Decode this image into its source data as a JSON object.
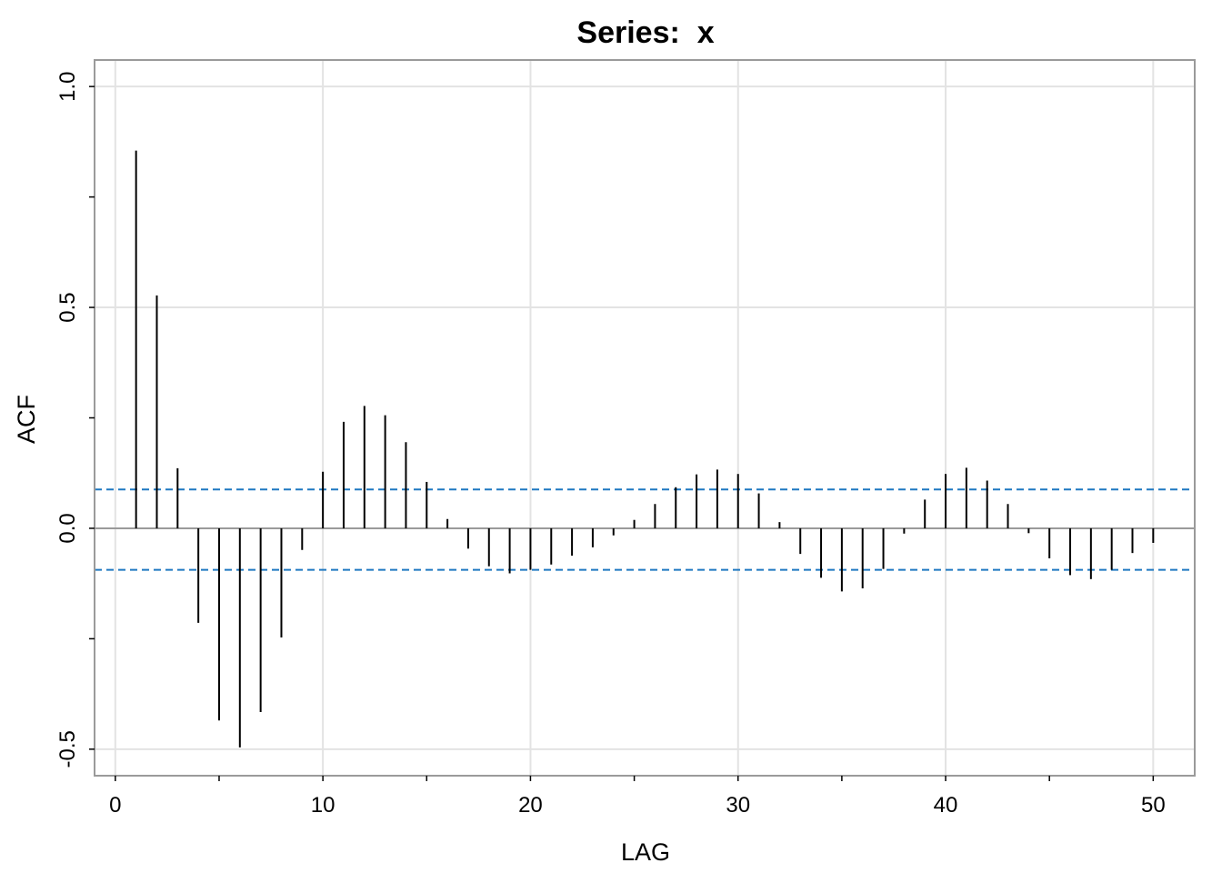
{
  "chart_data": {
    "type": "bar",
    "title": "Series:  x",
    "xlabel": "LAG",
    "ylabel": "ACF",
    "xlim": [
      -1,
      52
    ],
    "ylim": [
      -0.56,
      1.06
    ],
    "x_ticks": [
      0,
      10,
      20,
      30,
      40,
      50
    ],
    "y_ticks": [
      -0.5,
      0.0,
      0.5,
      1.0
    ],
    "x_tick_labels": [
      "0",
      "10",
      "20",
      "30",
      "40",
      "50"
    ],
    "y_tick_labels": [
      "-0.5",
      "0.0",
      "0.5",
      "1.0"
    ],
    "grid": true,
    "legend": "none",
    "confidence_bounds": [
      0.088,
      -0.094
    ],
    "confidence_color": "#1f78c1",
    "spike_color": "#000000",
    "lags": [
      1,
      2,
      3,
      4,
      5,
      6,
      7,
      8,
      9,
      10,
      11,
      12,
      13,
      14,
      15,
      16,
      17,
      18,
      19,
      20,
      21,
      22,
      23,
      24,
      25,
      26,
      27,
      28,
      29,
      30,
      31,
      32,
      33,
      34,
      35,
      36,
      37,
      38,
      39,
      40,
      41,
      42,
      43,
      44,
      45,
      46,
      47,
      48,
      49,
      50
    ],
    "values": [
      0.855,
      0.527,
      0.136,
      -0.214,
      -0.435,
      -0.496,
      -0.416,
      -0.247,
      -0.049,
      0.128,
      0.241,
      0.277,
      0.256,
      0.195,
      0.105,
      0.021,
      -0.046,
      -0.086,
      -0.102,
      -0.094,
      -0.082,
      -0.062,
      -0.043,
      -0.016,
      0.019,
      0.055,
      0.093,
      0.122,
      0.133,
      0.123,
      0.079,
      0.014,
      -0.058,
      -0.112,
      -0.143,
      -0.136,
      -0.092,
      -0.012,
      0.065,
      0.123,
      0.137,
      0.108,
      0.055,
      -0.011,
      -0.068,
      -0.106,
      -0.115,
      -0.094,
      -0.056,
      -0.033
    ]
  }
}
